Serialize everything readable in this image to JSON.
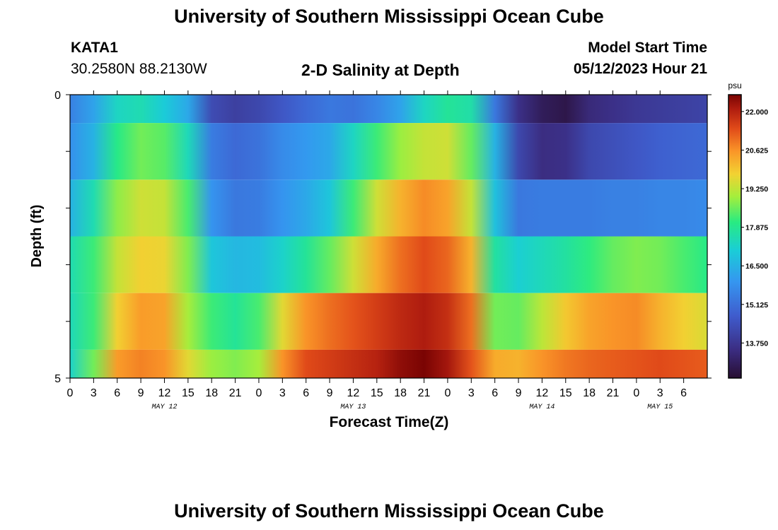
{
  "header": {
    "title": "University of Southern Mississippi Ocean Cube",
    "station": "KATA1",
    "coords": "30.2580N  88.2130W",
    "subtitle": "2-D Salinity at Depth",
    "start_label": "Model Start Time",
    "start_value": "05/12/2023 Hour 21"
  },
  "footer": {
    "title": "University of Southern Mississippi Ocean Cube"
  },
  "chart_data": {
    "type": "heatmap",
    "title": "2-D Salinity at Depth",
    "xlabel": "Forecast Time(Z)",
    "ylabel": "Depth (ft)",
    "ylim": [
      0,
      5
    ],
    "y_tick_labels": [
      "0",
      "5"
    ],
    "x_tick_labels": [
      "0",
      "3",
      "6",
      "9",
      "12",
      "15",
      "18",
      "21",
      "0",
      "3",
      "6",
      "9",
      "12",
      "15",
      "18",
      "21",
      "0",
      "3",
      "6",
      "9",
      "12",
      "15",
      "18",
      "21",
      "0",
      "3",
      "6"
    ],
    "x_hours_from_may12_00": [
      0,
      81
    ],
    "date_labels": [
      {
        "label": "MAY 12",
        "hour": 12
      },
      {
        "label": "MAY 13",
        "hour": 36
      },
      {
        "label": "MAY 14",
        "hour": 60
      },
      {
        "label": "MAY 15",
        "hour": 75
      }
    ],
    "colorbar": {
      "unit": "psu",
      "range": [
        12.5,
        22.6
      ],
      "tick_labels": [
        "22.000",
        "20.625",
        "19.250",
        "17.875",
        "16.500",
        "15.125",
        "13.750"
      ],
      "tick_values": [
        22.0,
        20.625,
        19.25,
        17.875,
        16.5,
        15.125,
        13.75
      ]
    },
    "rows": [
      {
        "depth_range": [
          0.0,
          0.5
        ],
        "hours": [
          0,
          3,
          6,
          9,
          12,
          15,
          18,
          21,
          24,
          27,
          30,
          33,
          36,
          39,
          42,
          45,
          48,
          51,
          54,
          57,
          60,
          63,
          66,
          69,
          72,
          75,
          78,
          81
        ],
        "values": [
          15.5,
          16.2,
          17.3,
          17.5,
          17.0,
          16.3,
          14.3,
          14.0,
          14.2,
          14.6,
          15.0,
          15.3,
          15.2,
          15.6,
          16.2,
          17.3,
          17.8,
          17.6,
          15.3,
          13.6,
          13.0,
          12.8,
          13.4,
          13.6,
          13.8,
          13.9,
          14.0,
          14.1
        ]
      },
      {
        "depth_range": [
          0.5,
          1.5
        ],
        "hours": [
          0,
          3,
          6,
          9,
          12,
          15,
          18,
          21,
          24,
          27,
          30,
          33,
          36,
          39,
          42,
          45,
          48,
          51,
          54,
          57,
          60,
          63,
          66,
          69,
          72,
          75,
          78,
          81
        ],
        "values": [
          15.8,
          16.5,
          18.0,
          18.6,
          18.4,
          17.4,
          15.4,
          15.0,
          15.2,
          15.7,
          16.0,
          16.3,
          17.3,
          18.2,
          18.9,
          19.3,
          19.4,
          18.5,
          16.5,
          14.2,
          13.5,
          13.6,
          14.2,
          14.4,
          14.6,
          14.8,
          14.9,
          15.0
        ]
      },
      {
        "depth_range": [
          1.5,
          2.5
        ],
        "hours": [
          0,
          3,
          6,
          9,
          12,
          15,
          18,
          21,
          24,
          27,
          30,
          33,
          36,
          39,
          42,
          45,
          48,
          51,
          54,
          57,
          60,
          63,
          66,
          69,
          72,
          75,
          78,
          81
        ],
        "values": [
          16.5,
          17.5,
          18.8,
          19.4,
          19.3,
          18.3,
          15.9,
          15.3,
          15.4,
          15.9,
          16.3,
          16.9,
          18.2,
          19.4,
          20.2,
          20.7,
          20.4,
          19.3,
          16.8,
          15.3,
          15.4,
          15.4,
          15.4,
          15.5,
          15.5,
          15.6,
          15.6,
          15.7
        ]
      },
      {
        "depth_range": [
          2.5,
          3.5
        ],
        "hours": [
          0,
          3,
          6,
          9,
          12,
          15,
          18,
          21,
          24,
          27,
          30,
          33,
          36,
          39,
          42,
          45,
          48,
          51,
          54,
          57,
          60,
          63,
          66,
          69,
          72,
          75,
          78,
          81
        ],
        "values": [
          17.5,
          18.2,
          19.3,
          19.8,
          19.7,
          18.7,
          16.9,
          16.6,
          16.7,
          17.2,
          17.8,
          18.5,
          19.4,
          20.3,
          21.0,
          21.4,
          21.1,
          20.2,
          17.7,
          17.1,
          17.4,
          17.7,
          18.1,
          18.5,
          18.7,
          18.6,
          18.3,
          18.0
        ]
      },
      {
        "depth_range": [
          3.5,
          4.5
        ],
        "hours": [
          0,
          3,
          6,
          9,
          12,
          15,
          18,
          21,
          24,
          27,
          30,
          33,
          36,
          39,
          42,
          45,
          48,
          51,
          54,
          57,
          60,
          63,
          66,
          69,
          72,
          75,
          78,
          81
        ],
        "values": [
          17.4,
          18.2,
          19.8,
          20.5,
          20.4,
          19.0,
          18.2,
          17.8,
          18.3,
          19.6,
          20.6,
          21.0,
          21.3,
          21.6,
          21.9,
          22.1,
          21.8,
          21.0,
          18.6,
          18.5,
          19.2,
          19.9,
          20.4,
          20.6,
          20.7,
          20.2,
          19.8,
          19.5
        ]
      },
      {
        "depth_range": [
          4.5,
          5.0
        ],
        "hours": [
          0,
          3,
          6,
          9,
          12,
          15,
          18,
          21,
          24,
          27,
          30,
          33,
          36,
          39,
          42,
          45,
          48,
          51,
          54,
          57,
          60,
          63,
          66,
          69,
          72,
          75,
          78,
          81
        ],
        "values": [
          17.2,
          18.6,
          20.5,
          20.8,
          20.6,
          19.6,
          18.9,
          18.7,
          19.0,
          20.6,
          21.4,
          21.6,
          21.8,
          22.0,
          22.4,
          22.6,
          22.2,
          21.3,
          20.3,
          20.2,
          20.6,
          20.9,
          21.1,
          21.2,
          21.3,
          21.4,
          21.3,
          21.2
        ]
      }
    ]
  }
}
